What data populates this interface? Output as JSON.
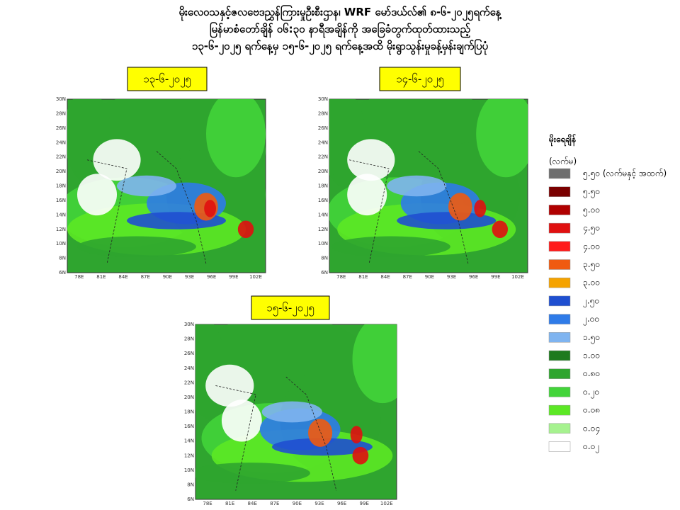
{
  "header": {
    "lines": [
      "မိုးလေဝသနှင့်ဇလဗေဒညွှန်ကြားမှုဦးစီးဌာန၊ WRF မော်ဒယ်လ်၏ ၈-၆-၂၀၂၅ရက်နေ့",
      "မြန်မာစံတော်ချိန် ၀၆:၃၀ နာရီအချိန်ကို အခြေခံတွက်ထုတ်ထားသည့်",
      "၁၃-၆-၂၀၂၅ ရက်နေ့မှ ၁၅-၆-၂၀၂၅ ရက်နေ့အထိ မိုးရွာသွန်းမှုခန့်မှန်းချက်ပြပုံ"
    ]
  },
  "maps": [
    {
      "date": "၁၃-၆-၂၀၂၅"
    },
    {
      "date": "၁၄-၆-၂၀၂၅"
    },
    {
      "date": "၁၅-၆-၂၀၂၅"
    }
  ],
  "axes": {
    "lat_labels": [
      "30N",
      "28N",
      "26N",
      "24N",
      "22N",
      "20N",
      "18N",
      "16N",
      "14N",
      "12N",
      "10N",
      "8N",
      "6N"
    ],
    "lon_labels": [
      "78E",
      "81E",
      "84E",
      "87E",
      "90E",
      "93E",
      "96E",
      "99E",
      "102E"
    ]
  },
  "legend": {
    "title": "မိုးရေချိန်",
    "unit": "(လက်မ)",
    "items": [
      {
        "label": "၅.၅၀ (လက်မနှင့် အထက်)",
        "color": "#6e6e6e"
      },
      {
        "label": "၅.၅၀",
        "color": "#7a0000"
      },
      {
        "label": "၅.၀၀",
        "color": "#b00000"
      },
      {
        "label": "၄.၅၀",
        "color": "#e01010"
      },
      {
        "label": "၄.၀၀",
        "color": "#ff1a1a"
      },
      {
        "label": "၃.၅၀",
        "color": "#f05a10"
      },
      {
        "label": "၃.၀၀",
        "color": "#f5a300"
      },
      {
        "label": "၂.၅၀",
        "color": "#1f4fd0"
      },
      {
        "label": "၂.၀၀",
        "color": "#2f7be8"
      },
      {
        "label": "၁.၅၀",
        "color": "#7fb4f0"
      },
      {
        "label": "၁.၀၀",
        "color": "#1e7a1e"
      },
      {
        "label": "၀.၈၀",
        "color": "#2fa52f"
      },
      {
        "label": "၀.၂၀",
        "color": "#43d43a"
      },
      {
        "label": "၀.၀၈",
        "color": "#5ce825"
      },
      {
        "label": "၀.၀၄",
        "color": "#a6f28f"
      },
      {
        "label": "၀.၀၂",
        "color": "#ffffff"
      }
    ]
  }
}
